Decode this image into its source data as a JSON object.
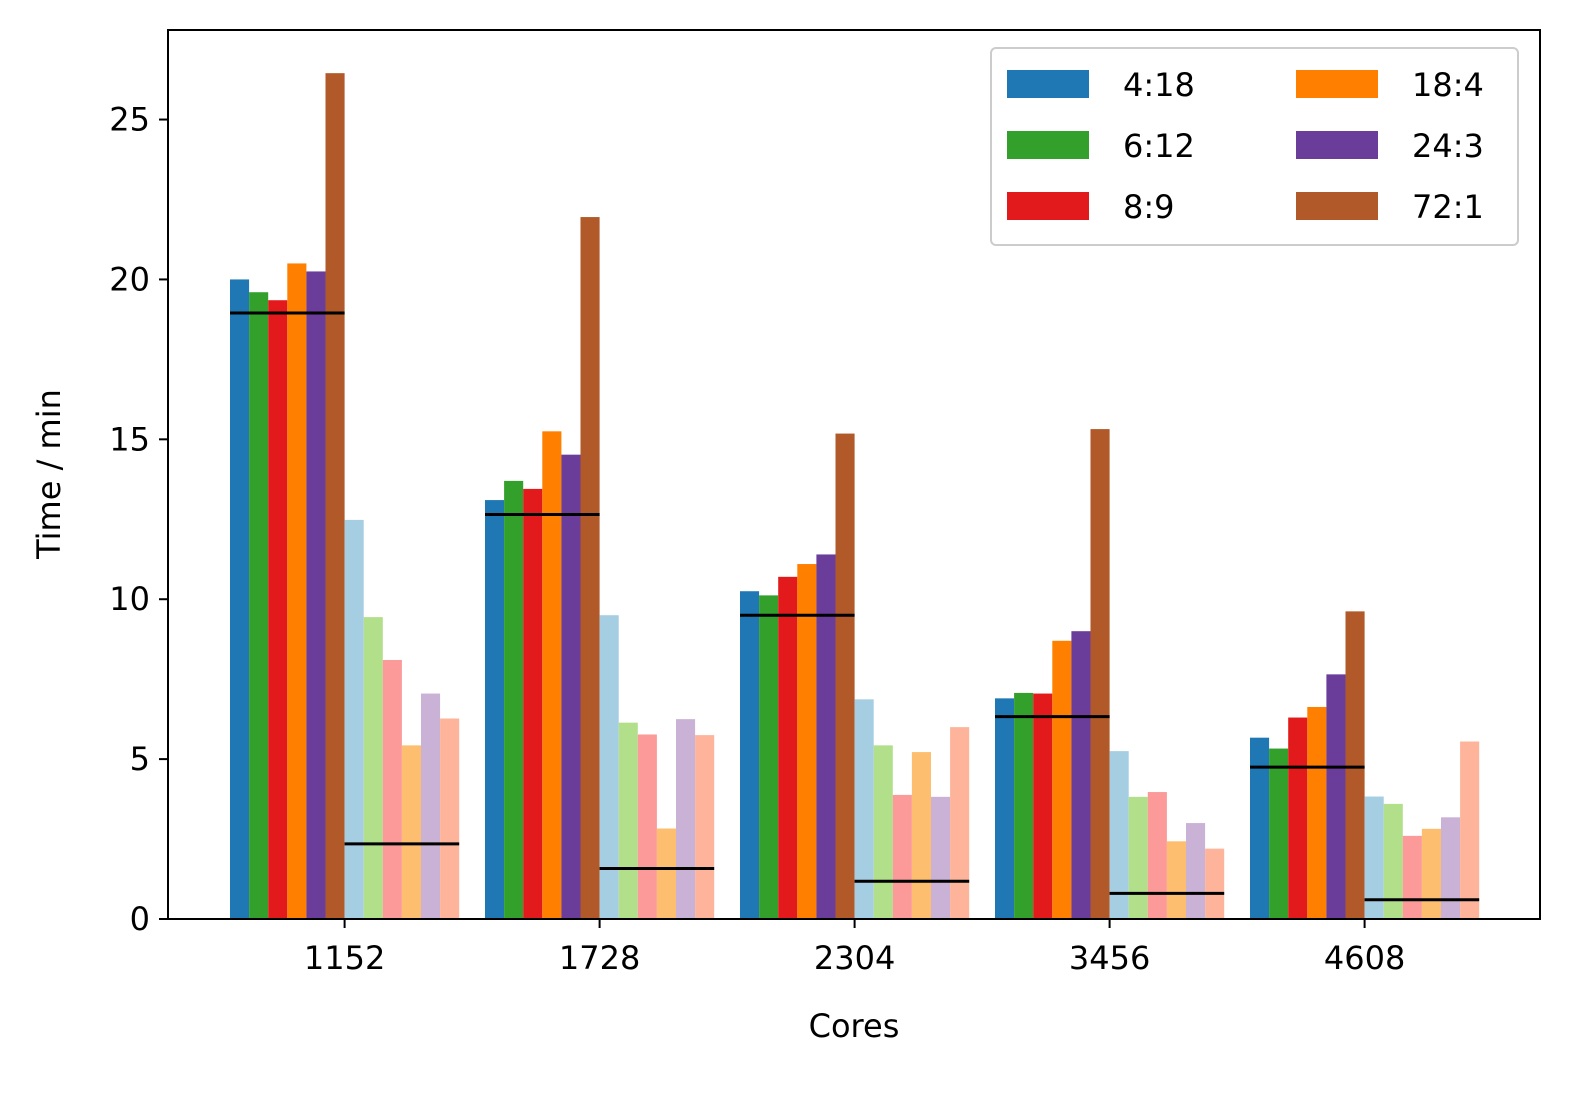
{
  "chart_data": {
    "type": "bar",
    "xlabel": "Cores",
    "ylabel": "Time / min",
    "ylim": [
      0,
      27.8
    ],
    "yticks": [
      0,
      5,
      10,
      15,
      20,
      25
    ],
    "categories": [
      "1152",
      "1728",
      "2304",
      "3456",
      "4608"
    ],
    "grid": false,
    "legend_position": "top-right",
    "series": [
      {
        "name": "4:18",
        "color": "#1f78b4",
        "values": [
          20.0,
          13.1,
          10.25,
          6.9,
          5.67
        ]
      },
      {
        "name": "6:12",
        "color": "#33a02c",
        "values": [
          19.6,
          13.7,
          10.12,
          7.07,
          5.33
        ]
      },
      {
        "name": "8:9",
        "color": "#e31a1c",
        "values": [
          19.35,
          13.45,
          10.7,
          7.05,
          6.3
        ]
      },
      {
        "name": "18:4",
        "color": "#ff7f00",
        "values": [
          20.5,
          15.25,
          11.1,
          8.7,
          6.63
        ]
      },
      {
        "name": "24:3",
        "color": "#6a3d9a",
        "values": [
          20.25,
          14.52,
          11.4,
          9.0,
          7.65
        ]
      },
      {
        "name": "72:1",
        "color": "#b15928",
        "values": [
          26.45,
          21.95,
          15.18,
          15.32,
          9.62
        ]
      },
      {
        "color": "#a6cee3",
        "values": [
          12.48,
          9.5,
          6.87,
          5.25,
          3.83
        ]
      },
      {
        "color": "#b2df8a",
        "values": [
          9.44,
          6.14,
          5.43,
          3.82,
          3.6
        ]
      },
      {
        "color": "#fb9a99",
        "values": [
          8.1,
          5.77,
          3.88,
          3.97,
          2.6
        ]
      },
      {
        "color": "#fdbf6f",
        "values": [
          5.43,
          2.83,
          5.22,
          2.43,
          2.82
        ]
      },
      {
        "color": "#cab2d6",
        "values": [
          7.05,
          6.25,
          3.82,
          3.0,
          3.18
        ]
      },
      {
        "color": "#fdb49a",
        "values": [
          6.27,
          5.75,
          6.0,
          2.2,
          5.55
        ]
      }
    ],
    "reference_lines": [
      {
        "group": "dark",
        "values": [
          18.95,
          12.65,
          9.5,
          6.33,
          4.75
        ]
      },
      {
        "group": "light",
        "values": [
          2.35,
          1.58,
          1.18,
          0.8,
          0.6
        ]
      }
    ]
  }
}
